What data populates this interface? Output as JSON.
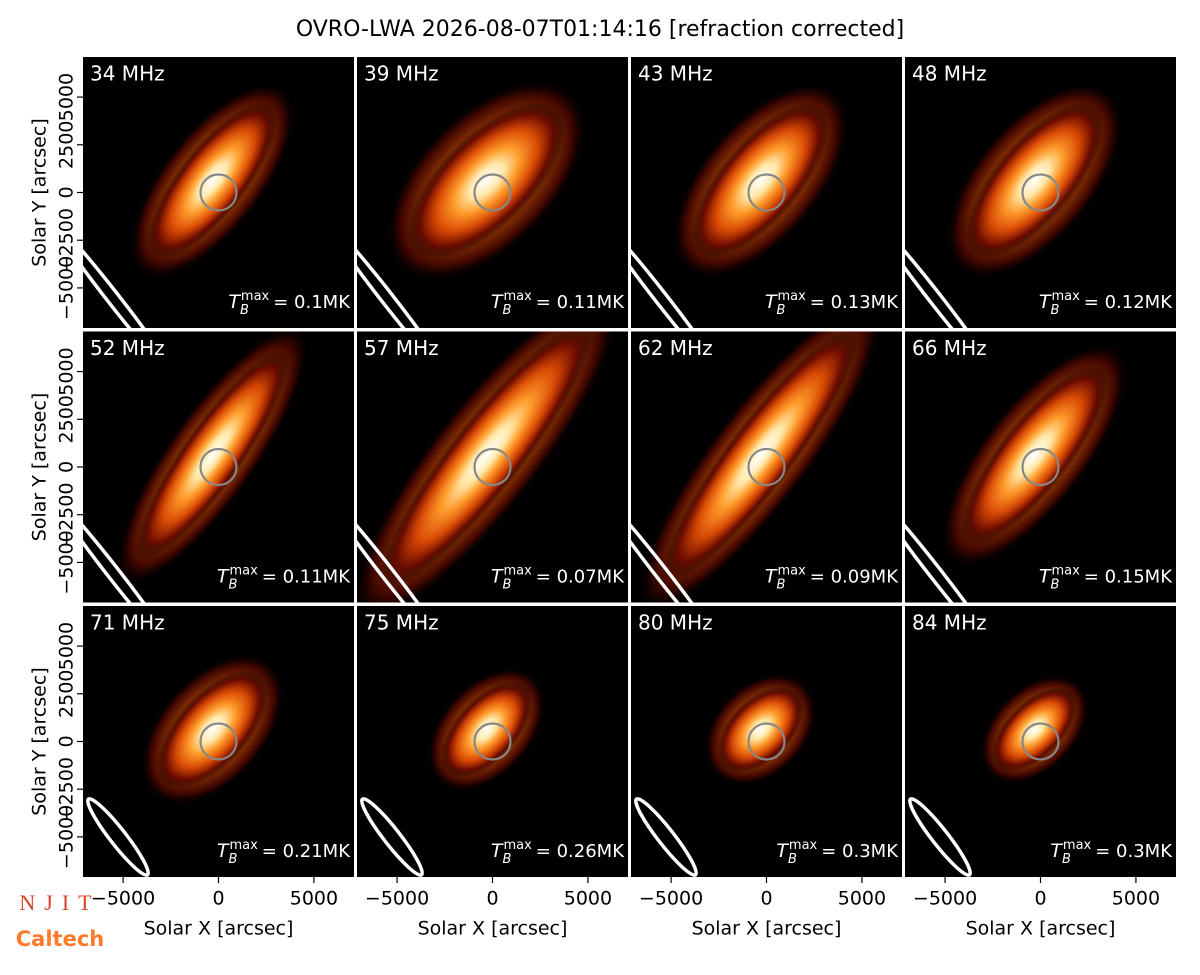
{
  "title": "OVRO-LWA 2026-08-07T01:14:16 [refraction corrected]",
  "logos": [
    "NJIT",
    "Caltech"
  ],
  "chart_data": [
    {
      "type": "image",
      "title": "34 MHz",
      "annotation": {
        "symbol": "T",
        "sub": "B",
        "sup": "max",
        "text": "= 0.1MK"
      },
      "xlim": [
        -7100,
        7100
      ],
      "ylim": [
        -7100,
        7100
      ],
      "ylabel": "Solar Y [arcsec]",
      "yticks": [
        {
          "value": -5000,
          "label": "−5000"
        },
        {
          "value": -2500,
          "label": "−2500"
        },
        0,
        2500,
        5000
      ]
    },
    {
      "type": "image",
      "title": "39 MHz",
      "annotation": {
        "symbol": "T",
        "sub": "B",
        "sup": "max",
        "text": "= 0.11MK"
      },
      "xlim": [
        -7100,
        7100
      ],
      "ylim": [
        -7100,
        7100
      ]
    },
    {
      "type": "image",
      "title": "43 MHz",
      "annotation": {
        "symbol": "T",
        "sub": "B",
        "sup": "max",
        "text": "= 0.13MK"
      },
      "xlim": [
        -7100,
        7100
      ],
      "ylim": [
        -7100,
        7100
      ]
    },
    {
      "type": "image",
      "title": "48 MHz",
      "annotation": {
        "symbol": "T",
        "sub": "B",
        "sup": "max",
        "text": "= 0.12MK"
      },
      "xlim": [
        -7100,
        7100
      ],
      "ylim": [
        -7100,
        7100
      ]
    },
    {
      "type": "image",
      "title": "52 MHz",
      "annotation": {
        "symbol": "T",
        "sub": "B",
        "sup": "max",
        "text": "= 0.11MK"
      },
      "xlim": [
        -7100,
        7100
      ],
      "ylim": [
        -7100,
        7100
      ],
      "ylabel": "Solar Y [arcsec]",
      "yticks": [
        {
          "value": -5000,
          "label": "−5000"
        },
        {
          "value": -2500,
          "label": "−2500"
        },
        0,
        2500,
        5000
      ]
    },
    {
      "type": "image",
      "title": "57 MHz",
      "annotation": {
        "symbol": "T",
        "sub": "B",
        "sup": "max",
        "text": "= 0.07MK"
      },
      "xlim": [
        -7100,
        7100
      ],
      "ylim": [
        -7100,
        7100
      ]
    },
    {
      "type": "image",
      "title": "62 MHz",
      "annotation": {
        "symbol": "T",
        "sub": "B",
        "sup": "max",
        "text": "= 0.09MK"
      },
      "xlim": [
        -7100,
        7100
      ],
      "ylim": [
        -7100,
        7100
      ]
    },
    {
      "type": "image",
      "title": "66 MHz",
      "annotation": {
        "symbol": "T",
        "sub": "B",
        "sup": "max",
        "text": "= 0.15MK"
      },
      "xlim": [
        -7100,
        7100
      ],
      "ylim": [
        -7100,
        7100
      ]
    },
    {
      "type": "image",
      "title": "71 MHz",
      "annotation": {
        "symbol": "T",
        "sub": "B",
        "sup": "max",
        "text": "= 0.21MK"
      },
      "xlim": [
        -7100,
        7100
      ],
      "ylim": [
        -7100,
        7100
      ],
      "ylabel": "Solar Y [arcsec]",
      "yticks": [
        {
          "value": -5000,
          "label": "−5000"
        },
        {
          "value": -2500,
          "label": "−2500"
        },
        0,
        2500,
        5000
      ],
      "xlabel": "Solar X [arcsec]",
      "xticks": [
        {
          "value": -5000,
          "label": "−5000"
        },
        0,
        5000
      ]
    },
    {
      "type": "image",
      "title": "75 MHz",
      "annotation": {
        "symbol": "T",
        "sub": "B",
        "sup": "max",
        "text": "= 0.26MK"
      },
      "xlim": [
        -7100,
        7100
      ],
      "ylim": [
        -7100,
        7100
      ],
      "xlabel": "Solar X [arcsec]",
      "xticks": [
        {
          "value": -5000,
          "label": "−5000"
        },
        0,
        5000
      ]
    },
    {
      "type": "image",
      "title": "80 MHz",
      "annotation": {
        "symbol": "T",
        "sub": "B",
        "sup": "max",
        "text": "= 0.3MK"
      },
      "xlim": [
        -7100,
        7100
      ],
      "ylim": [
        -7100,
        7100
      ],
      "xlabel": "Solar X [arcsec]",
      "xticks": [
        {
          "value": -5000,
          "label": "−5000"
        },
        0,
        5000
      ]
    },
    {
      "type": "image",
      "title": "84 MHz",
      "annotation": {
        "symbol": "T",
        "sub": "B",
        "sup": "max",
        "text": "= 0.3MK"
      },
      "xlim": [
        -7100,
        7100
      ],
      "ylim": [
        -7100,
        7100
      ],
      "xlabel": "Solar X [arcsec]",
      "xticks": [
        {
          "value": -5000,
          "label": "−5000"
        },
        0,
        5000
      ]
    }
  ]
}
